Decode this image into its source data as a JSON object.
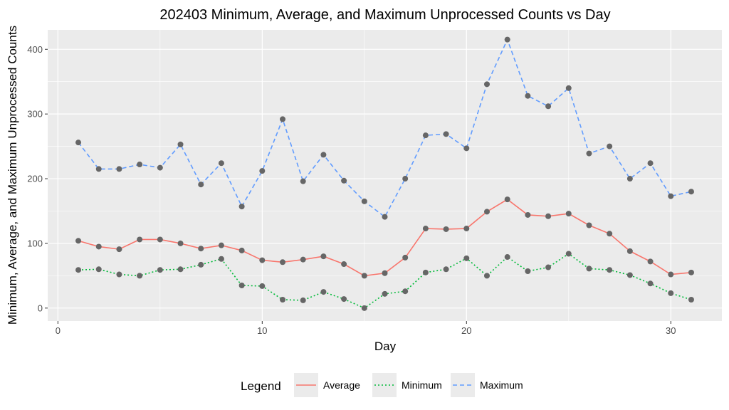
{
  "chart_data": {
    "type": "line",
    "title": "202403 Minimum, Average, and Maximum Unprocessed Counts vs Day",
    "xlabel": "Day",
    "ylabel": "Minimum, Average, and Maximum Unprocessed Counts",
    "xlim": [
      -0.5,
      32.5
    ],
    "ylim": [
      -20,
      430
    ],
    "x_ticks": [
      0,
      10,
      20,
      30
    ],
    "y_ticks": [
      0,
      100,
      200,
      300,
      400
    ],
    "x_tick_labels": [
      "0",
      "10",
      "20",
      "30"
    ],
    "y_tick_labels": [
      "0",
      "100",
      "200",
      "300",
      "400"
    ],
    "grid": true,
    "legend": {
      "title": "Legend",
      "position": "bottom"
    },
    "x": [
      1,
      2,
      3,
      4,
      5,
      6,
      7,
      8,
      9,
      10,
      11,
      12,
      13,
      14,
      15,
      16,
      17,
      18,
      19,
      20,
      21,
      22,
      23,
      24,
      25,
      26,
      27,
      28,
      29,
      30,
      31
    ],
    "series": [
      {
        "name": "Average",
        "color": "#F8766D",
        "dash": "solid",
        "values": [
          104,
          95,
          91,
          106,
          106,
          100,
          92,
          97,
          89,
          74,
          71,
          75,
          80,
          68,
          50,
          54,
          78,
          123,
          122,
          123,
          149,
          168,
          144,
          142,
          146,
          128,
          115,
          88,
          72,
          52,
          55
        ]
      },
      {
        "name": "Minimum",
        "color": "#00BA38",
        "dash": "dotted",
        "values": [
          59,
          60,
          52,
          50,
          59,
          60,
          67,
          76,
          35,
          34,
          13,
          12,
          25,
          14,
          0,
          22,
          26,
          55,
          60,
          77,
          50,
          79,
          57,
          63,
          84,
          61,
          59,
          51,
          38,
          23,
          13
        ]
      },
      {
        "name": "Maximum",
        "color": "#619CFF",
        "dash": "dashed",
        "values": [
          256,
          215,
          215,
          222,
          217,
          253,
          191,
          224,
          157,
          212,
          292,
          196,
          237,
          197,
          165,
          141,
          200,
          267,
          269,
          247,
          346,
          415,
          328,
          312,
          340,
          239,
          250,
          200,
          224,
          173,
          180
        ]
      }
    ],
    "point_color": "#666666",
    "panel_color": "#EBEBEB",
    "grid_color": "#FFFFFF"
  }
}
